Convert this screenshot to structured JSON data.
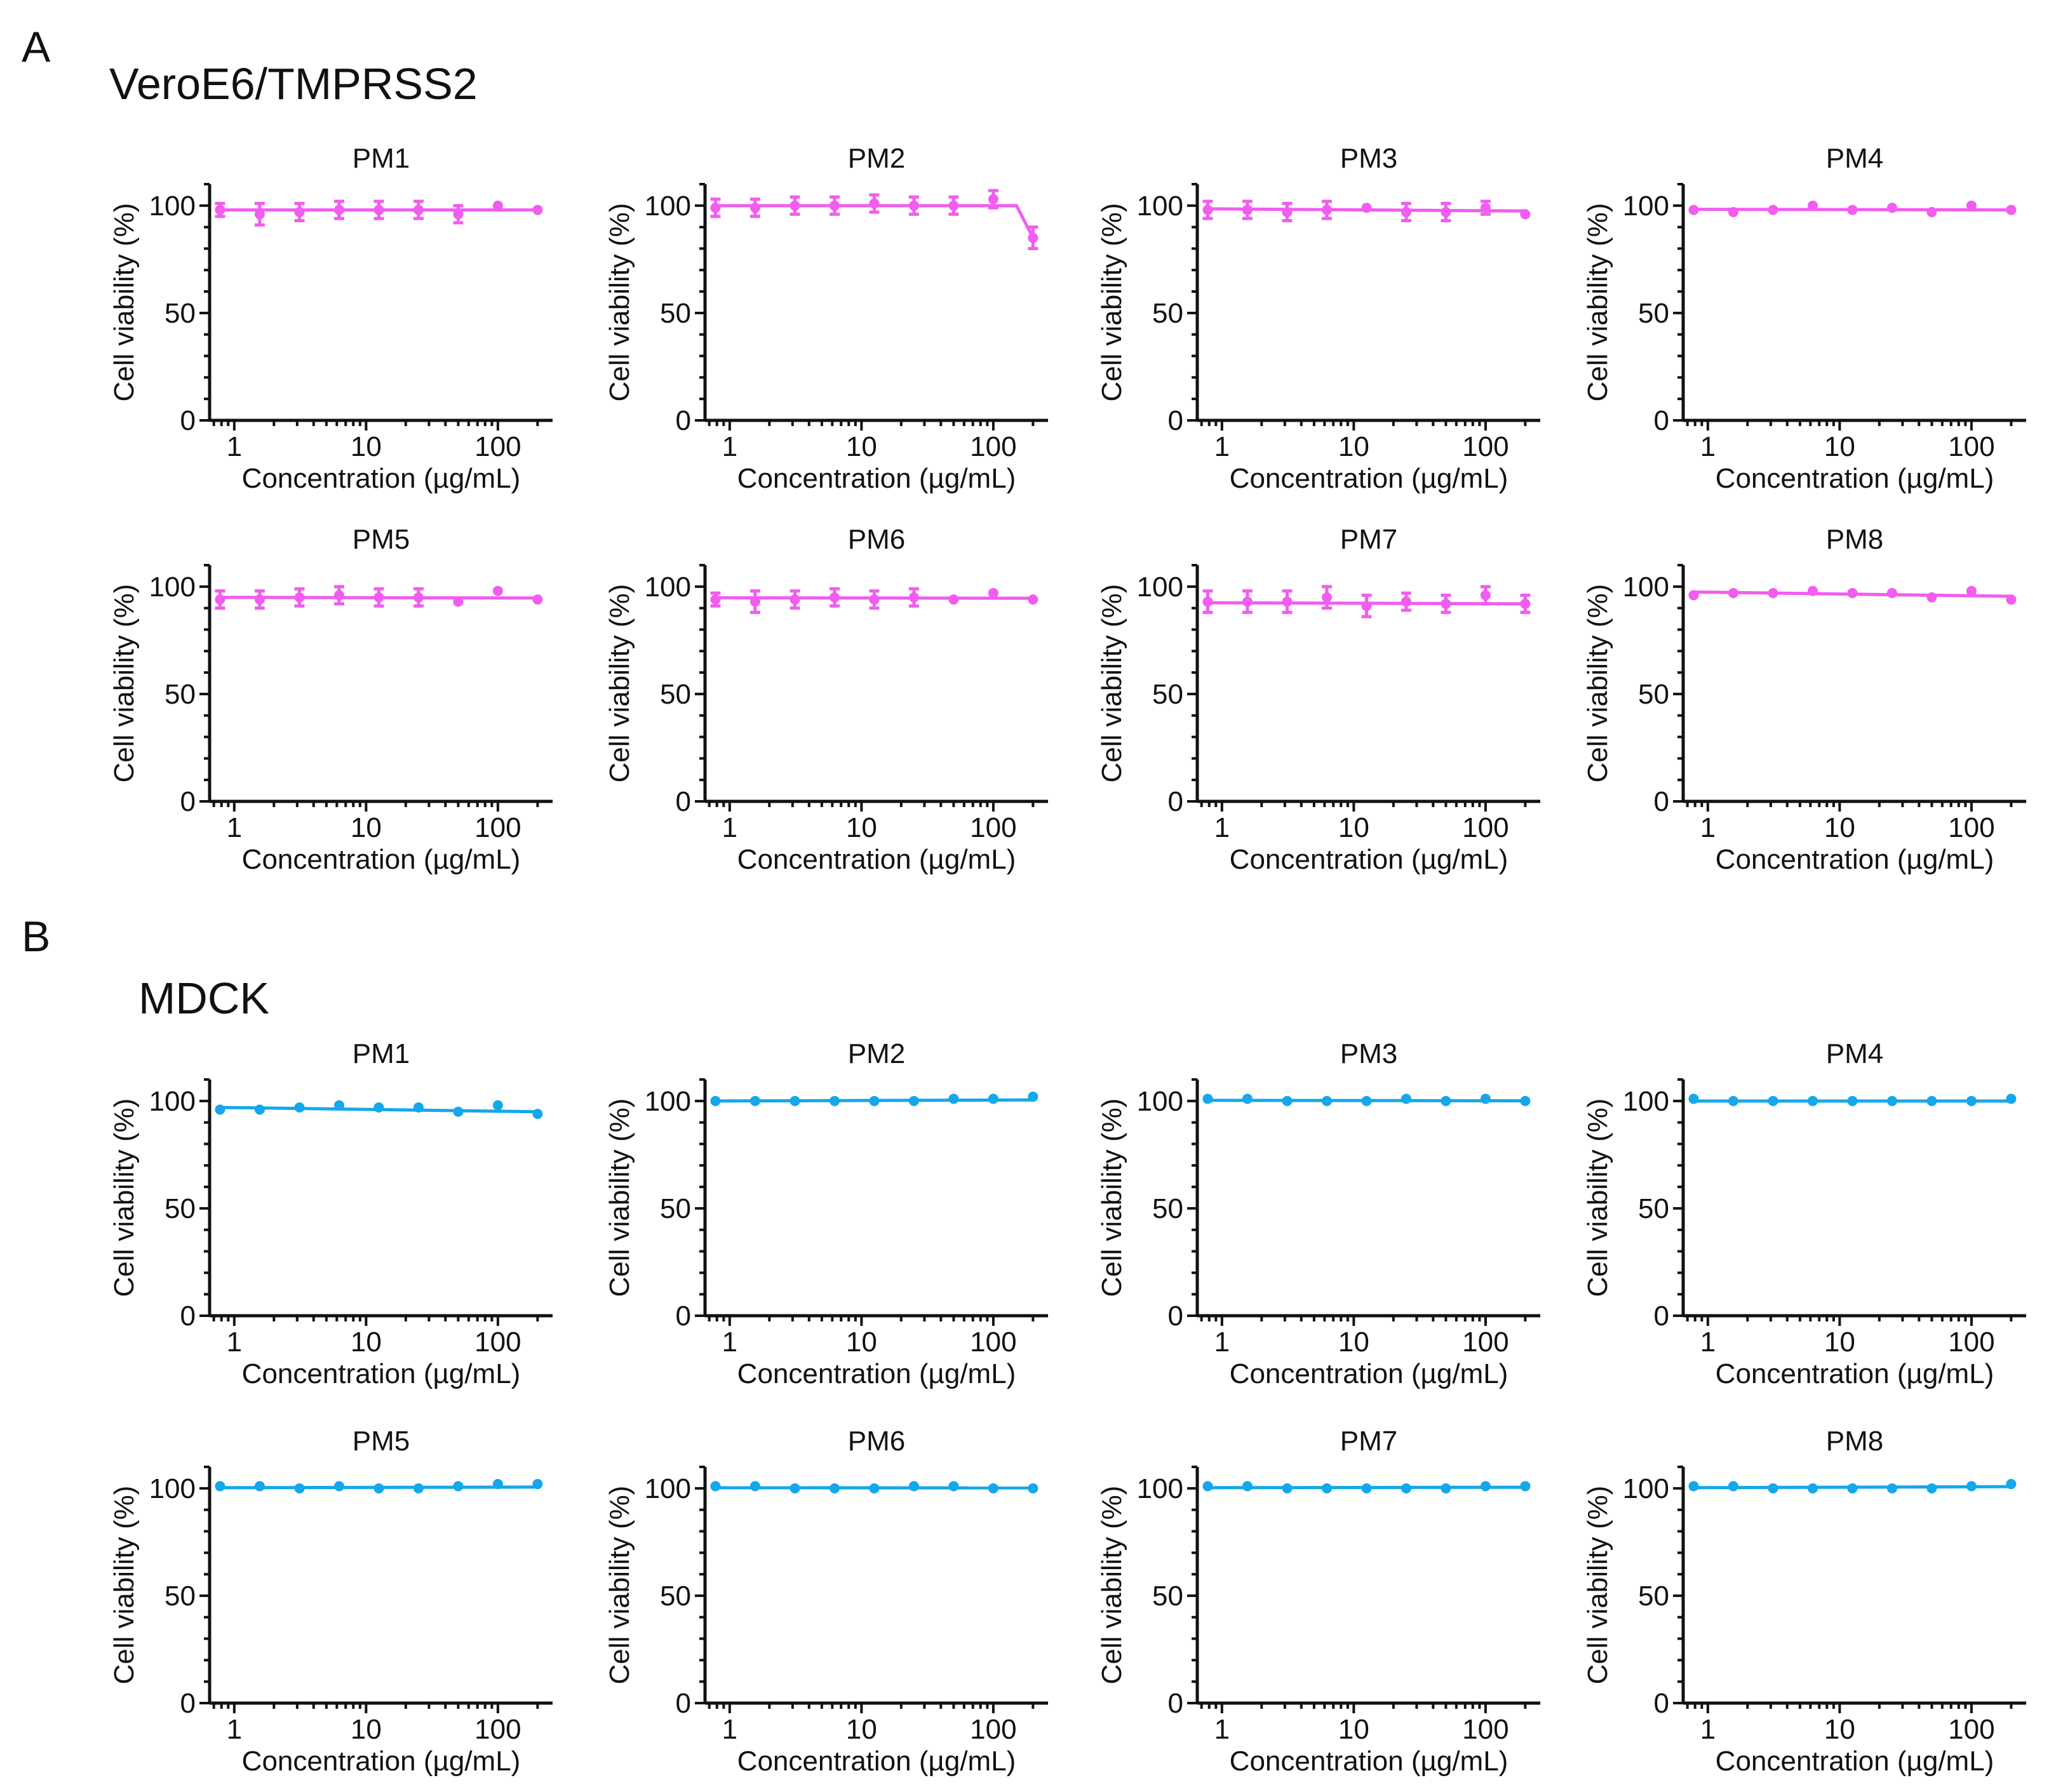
{
  "panels": [
    {
      "letter": "A",
      "cell_line": "VeroE6/TMPRSS2",
      "color": "#f25cf0"
    },
    {
      "letter": "B",
      "cell_line": "MDCK",
      "color": "#14a7ec"
    }
  ],
  "shared_axes": {
    "xlabel": "Concentration (µg/mL)",
    "ylabel": "Cell viability (%)",
    "xscale": "log",
    "xlim": [
      0.65,
      260
    ],
    "ylim": [
      0,
      110
    ],
    "yticks": [
      0,
      50,
      100
    ],
    "xticks": [
      1,
      10,
      100
    ],
    "concentrations": [
      0.78,
      1.56,
      3.125,
      6.25,
      12.5,
      25,
      50,
      100,
      200
    ]
  },
  "chart_data": [
    {
      "type": "scatter",
      "panel": "A",
      "title": "PM1",
      "xlabel": "Concentration (µg/mL)",
      "ylabel": "Cell viability (%)",
      "ylim": [
        0,
        110
      ],
      "series": [
        {
          "name": "PM1",
          "x": [
            0.78,
            1.56,
            3.125,
            6.25,
            12.5,
            25,
            50,
            100,
            200
          ],
          "y": [
            98,
            96,
            97,
            98,
            98,
            98,
            96,
            100,
            98
          ],
          "error": [
            3,
            5,
            4,
            4,
            4,
            4,
            4,
            0,
            0
          ],
          "fit": [
            98,
            98
          ]
        }
      ]
    },
    {
      "type": "scatter",
      "panel": "A",
      "title": "PM2",
      "xlabel": "Concentration (µg/mL)",
      "ylabel": "Cell viability (%)",
      "ylim": [
        0,
        110
      ],
      "series": [
        {
          "name": "PM2",
          "x": [
            0.78,
            1.56,
            3.125,
            6.25,
            12.5,
            25,
            50,
            100,
            200
          ],
          "y": [
            99,
            99,
            100,
            100,
            101,
            100,
            100,
            103,
            85
          ],
          "error": [
            4,
            4,
            4,
            4,
            4,
            4,
            4,
            4,
            5
          ],
          "fit": [
            100,
            100
          ]
        }
      ]
    },
    {
      "type": "scatter",
      "panel": "A",
      "title": "PM3",
      "xlabel": "Concentration (µg/mL)",
      "ylabel": "Cell viability (%)",
      "ylim": [
        0,
        110
      ],
      "series": [
        {
          "name": "PM3",
          "x": [
            0.78,
            1.56,
            3.125,
            6.25,
            12.5,
            25,
            50,
            100,
            200
          ],
          "y": [
            98,
            98,
            97,
            98,
            99,
            97,
            97,
            99,
            96
          ],
          "error": [
            4,
            4,
            4,
            4,
            0,
            4,
            4,
            3,
            0
          ],
          "fit": [
            98.5,
            97.5
          ]
        }
      ]
    },
    {
      "type": "scatter",
      "panel": "A",
      "title": "PM4",
      "xlabel": "Concentration (µg/mL)",
      "ylabel": "Cell viability (%)",
      "ylim": [
        0,
        110
      ],
      "series": [
        {
          "name": "PM4",
          "x": [
            0.78,
            1.56,
            3.125,
            6.25,
            12.5,
            25,
            50,
            100,
            200
          ],
          "y": [
            98,
            97,
            98,
            100,
            98,
            99,
            97,
            100,
            98
          ],
          "error": [
            0,
            0,
            0,
            0,
            0,
            0,
            0,
            0,
            0
          ],
          "fit": [
            98.3,
            98
          ]
        }
      ]
    },
    {
      "type": "scatter",
      "panel": "A",
      "title": "PM5",
      "xlabel": "Concentration (µg/mL)",
      "ylabel": "Cell viability (%)",
      "ylim": [
        0,
        110
      ],
      "series": [
        {
          "name": "PM5",
          "x": [
            0.78,
            1.56,
            3.125,
            6.25,
            12.5,
            25,
            50,
            100,
            200
          ],
          "y": [
            94,
            94,
            95,
            96,
            95,
            95,
            93,
            98,
            94
          ],
          "error": [
            4,
            4,
            4,
            4,
            4,
            4,
            0,
            0,
            0
          ],
          "fit": [
            95,
            94.7
          ]
        }
      ]
    },
    {
      "type": "scatter",
      "panel": "A",
      "title": "PM6",
      "xlabel": "Concentration (µg/mL)",
      "ylabel": "Cell viability (%)",
      "ylim": [
        0,
        110
      ],
      "series": [
        {
          "name": "PM6",
          "x": [
            0.78,
            1.56,
            3.125,
            6.25,
            12.5,
            25,
            50,
            100,
            200
          ],
          "y": [
            94,
            93,
            94,
            95,
            94,
            95,
            94,
            97,
            94
          ],
          "error": [
            3,
            5,
            4,
            4,
            4,
            4,
            0,
            0,
            0
          ],
          "fit": [
            94.8,
            94.6
          ]
        }
      ]
    },
    {
      "type": "scatter",
      "panel": "A",
      "title": "PM7",
      "xlabel": "Concentration (µg/mL)",
      "ylabel": "Cell viability (%)",
      "ylim": [
        0,
        110
      ],
      "series": [
        {
          "name": "PM7",
          "x": [
            0.78,
            1.56,
            3.125,
            6.25,
            12.5,
            25,
            50,
            100,
            200
          ],
          "y": [
            93,
            93,
            93,
            95,
            91,
            93,
            92,
            96,
            92
          ],
          "error": [
            5,
            5,
            5,
            5,
            5,
            4,
            4,
            4,
            4
          ],
          "fit": [
            92.5,
            92
          ]
        }
      ]
    },
    {
      "type": "scatter",
      "panel": "A",
      "title": "PM8",
      "xlabel": "Concentration (µg/mL)",
      "ylabel": "Cell viability (%)",
      "ylim": [
        0,
        110
      ],
      "series": [
        {
          "name": "PM8",
          "x": [
            0.78,
            1.56,
            3.125,
            6.25,
            12.5,
            25,
            50,
            100,
            200
          ],
          "y": [
            96,
            97,
            97,
            98,
            97,
            97,
            95,
            98,
            94
          ],
          "error": [
            0,
            0,
            0,
            0,
            0,
            0,
            0,
            0,
            0
          ],
          "fit": [
            97.5,
            95.5
          ]
        }
      ]
    },
    {
      "type": "scatter",
      "panel": "B",
      "title": "PM1",
      "xlabel": "Concentration (µg/mL)",
      "ylabel": "Cell viability (%)",
      "ylim": [
        0,
        110
      ],
      "series": [
        {
          "name": "PM1",
          "x": [
            0.78,
            1.56,
            3.125,
            6.25,
            12.5,
            25,
            50,
            100,
            200
          ],
          "y": [
            96,
            96,
            97,
            98,
            97,
            97,
            95,
            98,
            94
          ],
          "error": [
            0,
            0,
            0,
            0,
            0,
            0,
            0,
            0,
            0
          ],
          "fit": [
            97,
            95
          ]
        }
      ]
    },
    {
      "type": "scatter",
      "panel": "B",
      "title": "PM2",
      "xlabel": "Concentration (µg/mL)",
      "ylabel": "Cell viability (%)",
      "ylim": [
        0,
        110
      ],
      "series": [
        {
          "name": "PM2",
          "x": [
            0.78,
            1.56,
            3.125,
            6.25,
            12.5,
            25,
            50,
            100,
            200
          ],
          "y": [
            100,
            100,
            100,
            100,
            100,
            100,
            101,
            101,
            102
          ],
          "error": [
            0,
            0,
            0,
            0,
            0,
            0,
            0,
            0,
            0
          ],
          "fit": [
            100,
            100.5
          ]
        }
      ]
    },
    {
      "type": "scatter",
      "panel": "B",
      "title": "PM3",
      "xlabel": "Concentration (µg/mL)",
      "ylabel": "Cell viability (%)",
      "ylim": [
        0,
        110
      ],
      "series": [
        {
          "name": "PM3",
          "x": [
            0.78,
            1.56,
            3.125,
            6.25,
            12.5,
            25,
            50,
            100,
            200
          ],
          "y": [
            101,
            101,
            100,
            100,
            100,
            101,
            100,
            101,
            100
          ],
          "error": [
            0,
            0,
            0,
            0,
            0,
            0,
            0,
            0,
            0
          ],
          "fit": [
            100.3,
            100.1
          ]
        }
      ]
    },
    {
      "type": "scatter",
      "panel": "B",
      "title": "PM4",
      "xlabel": "Concentration (µg/mL)",
      "ylabel": "Cell viability (%)",
      "ylim": [
        0,
        110
      ],
      "series": [
        {
          "name": "PM4",
          "x": [
            0.78,
            1.56,
            3.125,
            6.25,
            12.5,
            25,
            50,
            100,
            200
          ],
          "y": [
            101,
            100,
            100,
            100,
            100,
            100,
            100,
            100,
            101
          ],
          "error": [
            0,
            0,
            0,
            0,
            0,
            0,
            0,
            0,
            0
          ],
          "fit": [
            100,
            100
          ]
        }
      ]
    },
    {
      "type": "scatter",
      "panel": "B",
      "title": "PM5",
      "xlabel": "Concentration (µg/mL)",
      "ylabel": "Cell viability (%)",
      "ylim": [
        0,
        110
      ],
      "series": [
        {
          "name": "PM5",
          "x": [
            0.78,
            1.56,
            3.125,
            6.25,
            12.5,
            25,
            50,
            100,
            200
          ],
          "y": [
            101,
            101,
            100,
            101,
            100,
            100,
            101,
            102,
            102
          ],
          "error": [
            0,
            0,
            0,
            0,
            0,
            0,
            0,
            0,
            0
          ],
          "fit": [
            100.3,
            100.6
          ]
        }
      ]
    },
    {
      "type": "scatter",
      "panel": "B",
      "title": "PM6",
      "xlabel": "Concentration (µg/mL)",
      "ylabel": "Cell viability (%)",
      "ylim": [
        0,
        110
      ],
      "series": [
        {
          "name": "PM6",
          "x": [
            0.78,
            1.56,
            3.125,
            6.25,
            12.5,
            25,
            50,
            100,
            200
          ],
          "y": [
            101,
            101,
            100,
            100,
            100,
            101,
            101,
            100,
            100
          ],
          "error": [
            0,
            0,
            0,
            0,
            0,
            0,
            0,
            0,
            0
          ],
          "fit": [
            100.3,
            100.2
          ]
        }
      ]
    },
    {
      "type": "scatter",
      "panel": "B",
      "title": "PM7",
      "xlabel": "Concentration (µg/mL)",
      "ylabel": "Cell viability (%)",
      "ylim": [
        0,
        110
      ],
      "series": [
        {
          "name": "PM7",
          "x": [
            0.78,
            1.56,
            3.125,
            6.25,
            12.5,
            25,
            50,
            100,
            200
          ],
          "y": [
            101,
            101,
            100,
            100,
            100,
            100,
            100,
            101,
            101
          ],
          "error": [
            0,
            0,
            0,
            0,
            0,
            0,
            0,
            0,
            0
          ],
          "fit": [
            100.3,
            100.5
          ]
        }
      ]
    },
    {
      "type": "scatter",
      "panel": "B",
      "title": "PM8",
      "xlabel": "Concentration (µg/mL)",
      "ylabel": "Cell viability (%)",
      "ylim": [
        0,
        110
      ],
      "series": [
        {
          "name": "PM8",
          "x": [
            0.78,
            1.56,
            3.125,
            6.25,
            12.5,
            25,
            50,
            100,
            200
          ],
          "y": [
            101,
            101,
            100,
            100,
            100,
            100,
            100,
            101,
            102
          ],
          "error": [
            0,
            0,
            0,
            0,
            0,
            0,
            0,
            0,
            0
          ],
          "fit": [
            100.3,
            100.8
          ]
        }
      ]
    }
  ]
}
